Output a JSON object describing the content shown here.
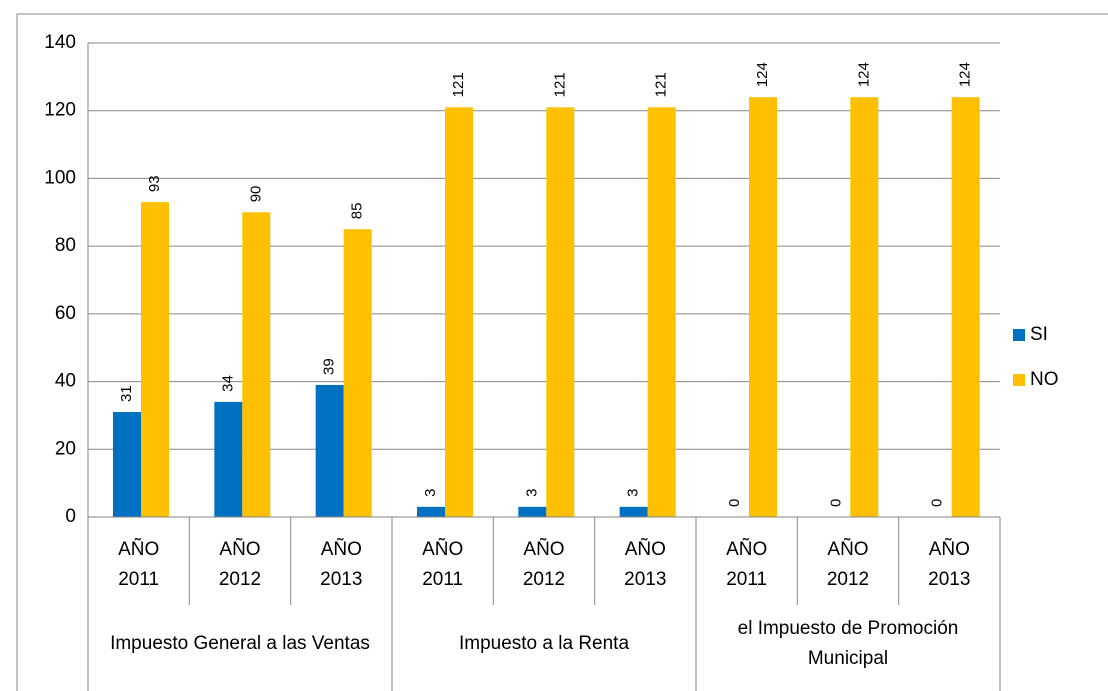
{
  "chart_data": {
    "type": "bar",
    "groups": [
      {
        "name": "Impuesto General a las Ventas",
        "categories": [
          "AÑO 2011",
          "AÑO 2012",
          "AÑO 2013"
        ]
      },
      {
        "name": "Impuesto a la Renta",
        "categories": [
          "AÑO 2011",
          "AÑO 2012",
          "AÑO 2013"
        ]
      },
      {
        "name": "el Impuesto de Promoción Municipal",
        "categories": [
          "AÑO 2011",
          "AÑO 2012",
          "AÑO 2013"
        ]
      }
    ],
    "series": [
      {
        "name": "SI",
        "color": "#0070c0",
        "values": [
          31,
          34,
          39,
          3,
          3,
          3,
          0,
          0,
          0
        ]
      },
      {
        "name": "NO",
        "color": "#ffc000",
        "values": [
          93,
          90,
          85,
          121,
          121,
          121,
          124,
          124,
          124
        ]
      }
    ],
    "ylim": [
      0,
      140
    ],
    "yticks": [
      0,
      20,
      40,
      60,
      80,
      100,
      120,
      140
    ],
    "grid": true,
    "legend": "right"
  }
}
